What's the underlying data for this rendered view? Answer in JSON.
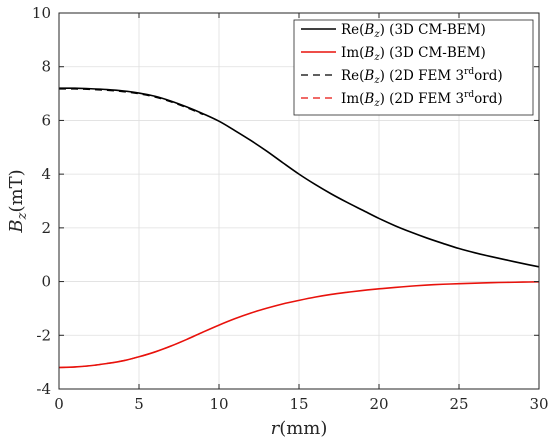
{
  "chart_data": {
    "type": "line",
    "xlabel": {
      "var": "r",
      "unit": "(mm)"
    },
    "ylabel": {
      "var": "B",
      "sub": "z",
      "unit": "(mT)"
    },
    "xlim": [
      0,
      30
    ],
    "ylim": [
      -4,
      10
    ],
    "xticks": [
      0,
      5,
      10,
      15,
      20,
      25,
      30
    ],
    "yticks": [
      -4,
      -2,
      0,
      2,
      4,
      6,
      8,
      10
    ],
    "xtick_labels": [
      "0",
      "5",
      "10",
      "15",
      "20",
      "25",
      "30"
    ],
    "ytick_labels": [
      "-4",
      "-2",
      "0",
      "2",
      "4",
      "6",
      "8",
      "10"
    ],
    "grid": true,
    "legend_position": "top-right",
    "series": [
      {
        "name": "Re(Bz) (3D CM-BEM)",
        "legend": {
          "pre": "Re(",
          "var": "B",
          "sub": "z",
          "post": ") (3D CM-BEM)",
          "sup": "",
          "tail": ""
        },
        "color": "#000000",
        "dash": "solid",
        "x": [
          0,
          1,
          2,
          3,
          4,
          5,
          6,
          7,
          8,
          9,
          10,
          11,
          12,
          13,
          14,
          15,
          16,
          17,
          18,
          19,
          20,
          21,
          22,
          23,
          24,
          25,
          26,
          27,
          28,
          29,
          30
        ],
        "y": [
          7.2,
          7.2,
          7.18,
          7.15,
          7.1,
          7.02,
          6.9,
          6.72,
          6.5,
          6.25,
          5.97,
          5.62,
          5.25,
          4.85,
          4.42,
          4.0,
          3.62,
          3.27,
          2.95,
          2.65,
          2.35,
          2.08,
          1.84,
          1.62,
          1.42,
          1.23,
          1.07,
          0.93,
          0.8,
          0.67,
          0.55
        ]
      },
      {
        "name": "Im(Bz) (3D CM-BEM)",
        "legend": {
          "pre": "Im(",
          "var": "B",
          "sub": "z",
          "post": ") (3D CM-BEM)",
          "sup": "",
          "tail": ""
        },
        "color": "#e8120c",
        "dash": "solid",
        "x": [
          0,
          1,
          2,
          3,
          4,
          5,
          6,
          7,
          8,
          9,
          10,
          11,
          12,
          13,
          14,
          15,
          16,
          17,
          18,
          19,
          20,
          21,
          22,
          23,
          24,
          25,
          26,
          27,
          28,
          29,
          30
        ],
        "y": [
          -3.2,
          -3.18,
          -3.13,
          -3.05,
          -2.95,
          -2.8,
          -2.62,
          -2.4,
          -2.15,
          -1.88,
          -1.62,
          -1.38,
          -1.17,
          -0.99,
          -0.83,
          -0.7,
          -0.58,
          -0.48,
          -0.4,
          -0.33,
          -0.27,
          -0.22,
          -0.17,
          -0.13,
          -0.1,
          -0.08,
          -0.06,
          -0.04,
          -0.03,
          -0.02,
          -0.01
        ]
      },
      {
        "name": "Re(Bz) (2D FEM 3rd ord)",
        "legend": {
          "pre": "Re(",
          "var": "B",
          "sub": "z",
          "post": ") (2D FEM 3",
          "sup": "rd",
          "tail": "ord)"
        },
        "color": "#000000",
        "dash": "dashed",
        "x": [
          0,
          1,
          2,
          3,
          4,
          5,
          6,
          7,
          8,
          9
        ],
        "y": [
          7.17,
          7.17,
          7.15,
          7.12,
          7.07,
          6.99,
          6.87,
          6.69,
          6.47,
          6.22
        ]
      },
      {
        "name": "Im(Bz) (2D FEM 3rd ord)",
        "legend": {
          "pre": "Im(",
          "var": "B",
          "sub": "z",
          "post": ") (2D FEM 3",
          "sup": "rd",
          "tail": "ord)"
        },
        "color": "#e8120c",
        "dash": "dashed",
        "x": [
          0,
          1,
          2,
          3,
          4,
          5,
          6,
          7,
          8,
          9
        ],
        "y": [
          -3.2,
          -3.18,
          -3.13,
          -3.05,
          -2.95,
          -2.8,
          -2.62,
          -2.4,
          -2.15,
          -1.88
        ]
      }
    ]
  }
}
